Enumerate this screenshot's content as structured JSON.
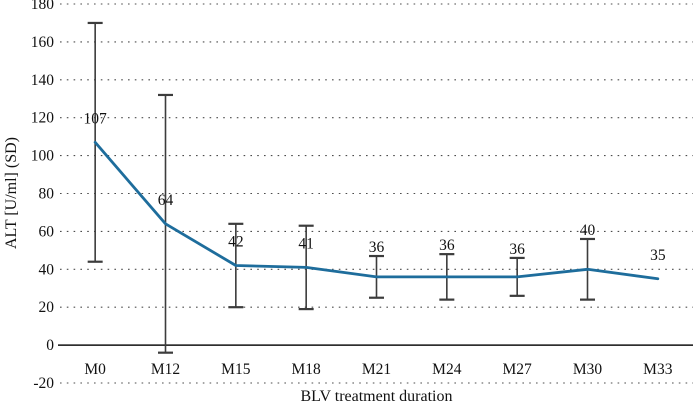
{
  "chart_data": {
    "type": "line",
    "xlabel": "BLV treatment duration",
    "ylabel": "ALT [U/ml] (SD)",
    "categories": [
      "M0",
      "M12",
      "M15",
      "M18",
      "M21",
      "M24",
      "M27",
      "M30",
      "M33"
    ],
    "series": [
      {
        "name": "ALT",
        "values": [
          107,
          64,
          42,
          41,
          36,
          36,
          36,
          40,
          35
        ],
        "sd": [
          63,
          68,
          22,
          22,
          11,
          12,
          10,
          16,
          null
        ],
        "upper": [
          170,
          132,
          64,
          63,
          47,
          48,
          46,
          56,
          null
        ],
        "lower": [
          44,
          -4,
          20,
          19,
          25,
          24,
          26,
          24,
          null
        ]
      }
    ],
    "data_labels": [
      "107",
      "64",
      "42",
      "41",
      "36",
      "36",
      "36",
      "40",
      "35"
    ],
    "ylim": [
      -20,
      180
    ],
    "yticks": [
      180,
      160,
      140,
      120,
      100,
      80,
      60,
      40,
      20,
      0,
      -20
    ],
    "grid": "dotted-horizontal",
    "legend": "none",
    "line_color": "#1e6d9c",
    "error_bar_color": "#3c3c3c",
    "grid_color": "#4d4d4d",
    "axis_color": "#111111",
    "text_color": "#111111"
  }
}
